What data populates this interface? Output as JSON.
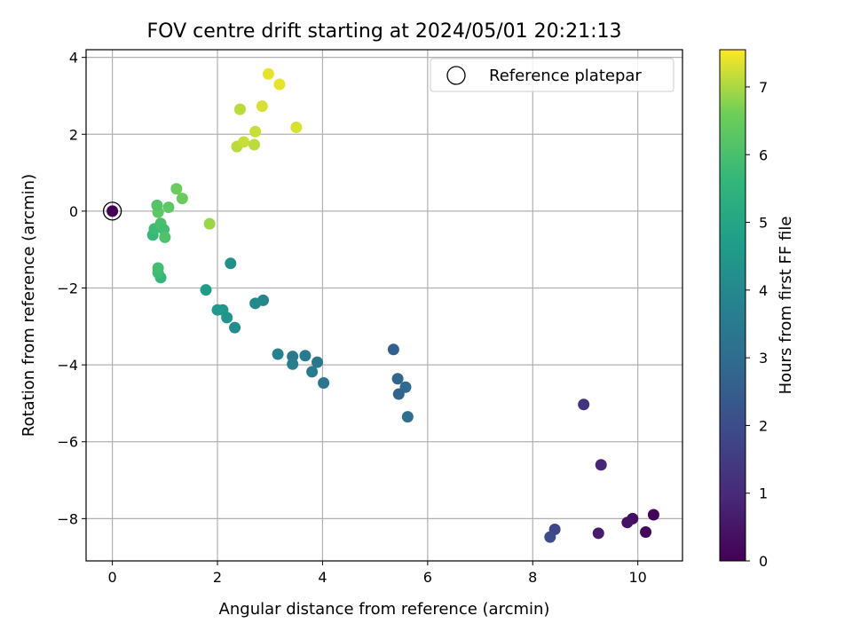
{
  "chart_data": {
    "type": "scatter",
    "title": "FOV centre drift starting at 2024/05/01 20:21:13",
    "xlabel": "Angular distance from reference (arcmin)",
    "ylabel": "Rotation from reference (arcmin)",
    "xlim": [
      -0.5,
      10.85
    ],
    "ylim": [
      -9.1,
      4.2
    ],
    "xticks": [
      0,
      2,
      4,
      6,
      8,
      10
    ],
    "yticks": [
      -8,
      -6,
      -4,
      -2,
      0,
      2,
      4
    ],
    "xtick_labels": [
      "0",
      "2",
      "4",
      "6",
      "8",
      "10"
    ],
    "ytick_labels": [
      "−8",
      "−6",
      "−4",
      "−2",
      "0",
      "2",
      "4"
    ],
    "grid": true,
    "legend": {
      "placement": "top-right",
      "entries": [
        {
          "label": "Reference platepar",
          "marker": "open-circle",
          "x": 0,
          "y": 0
        }
      ]
    },
    "colorbar": {
      "label": "Hours from first FF file",
      "colormap": "viridis",
      "range": [
        0,
        7.55
      ],
      "ticks": [
        0,
        1,
        2,
        3,
        4,
        5,
        6,
        7
      ],
      "tick_labels": [
        "0",
        "1",
        "2",
        "3",
        "4",
        "5",
        "6",
        "7"
      ]
    },
    "series": [
      {
        "points": [
          {
            "x": 0.0,
            "y": 0.0,
            "hours": 0.0
          },
          {
            "x": 10.3,
            "y": -7.9,
            "hours": 0.1
          },
          {
            "x": 10.15,
            "y": -8.35,
            "hours": 0.2
          },
          {
            "x": 9.9,
            "y": -8.0,
            "hours": 0.3
          },
          {
            "x": 9.8,
            "y": -8.1,
            "hours": 0.4
          },
          {
            "x": 9.25,
            "y": -8.38,
            "hours": 0.6
          },
          {
            "x": 9.3,
            "y": -6.6,
            "hours": 0.9
          },
          {
            "x": 8.97,
            "y": -5.03,
            "hours": 1.3
          },
          {
            "x": 8.42,
            "y": -8.28,
            "hours": 1.8
          },
          {
            "x": 8.33,
            "y": -8.48,
            "hours": 2.0
          },
          {
            "x": 5.62,
            "y": -5.35,
            "hours": 3.1
          },
          {
            "x": 5.58,
            "y": -4.58,
            "hours": 2.9
          },
          {
            "x": 5.45,
            "y": -4.76,
            "hours": 2.7
          },
          {
            "x": 5.43,
            "y": -4.36,
            "hours": 2.8
          },
          {
            "x": 5.35,
            "y": -3.6,
            "hours": 2.6
          },
          {
            "x": 4.02,
            "y": -4.47,
            "hours": 3.3
          },
          {
            "x": 3.9,
            "y": -3.93,
            "hours": 3.4
          },
          {
            "x": 3.8,
            "y": -4.18,
            "hours": 3.5
          },
          {
            "x": 3.67,
            "y": -3.76,
            "hours": 3.5
          },
          {
            "x": 3.43,
            "y": -3.78,
            "hours": 3.4
          },
          {
            "x": 3.43,
            "y": -3.98,
            "hours": 3.6
          },
          {
            "x": 3.15,
            "y": -3.72,
            "hours": 3.7
          },
          {
            "x": 2.87,
            "y": -2.32,
            "hours": 3.9
          },
          {
            "x": 2.72,
            "y": -2.4,
            "hours": 4.0
          },
          {
            "x": 2.33,
            "y": -3.03,
            "hours": 4.1
          },
          {
            "x": 2.25,
            "y": -1.36,
            "hours": 4.2
          },
          {
            "x": 2.18,
            "y": -2.77,
            "hours": 4.4
          },
          {
            "x": 2.1,
            "y": -2.57,
            "hours": 4.5
          },
          {
            "x": 2.0,
            "y": -2.57,
            "hours": 4.6
          },
          {
            "x": 1.78,
            "y": -2.05,
            "hours": 4.7
          },
          {
            "x": 0.92,
            "y": -1.73,
            "hours": 5.6
          },
          {
            "x": 0.87,
            "y": -1.6,
            "hours": 5.8
          },
          {
            "x": 0.87,
            "y": -1.48,
            "hours": 5.9
          },
          {
            "x": 0.77,
            "y": -0.62,
            "hours": 5.7
          },
          {
            "x": 0.8,
            "y": -0.46,
            "hours": 5.8
          },
          {
            "x": 0.92,
            "y": -0.32,
            "hours": 6.0
          },
          {
            "x": 0.98,
            "y": -0.48,
            "hours": 5.9
          },
          {
            "x": 1.0,
            "y": -0.68,
            "hours": 6.1
          },
          {
            "x": 0.87,
            "y": -0.03,
            "hours": 6.3
          },
          {
            "x": 0.85,
            "y": 0.15,
            "hours": 6.2
          },
          {
            "x": 1.07,
            "y": 0.1,
            "hours": 6.3
          },
          {
            "x": 1.22,
            "y": 0.58,
            "hours": 6.5
          },
          {
            "x": 1.33,
            "y": 0.33,
            "hours": 6.5
          },
          {
            "x": 1.85,
            "y": -0.33,
            "hours": 6.9
          },
          {
            "x": 2.37,
            "y": 1.68,
            "hours": 7.1
          },
          {
            "x": 2.5,
            "y": 1.8,
            "hours": 7.2
          },
          {
            "x": 2.7,
            "y": 1.73,
            "hours": 7.1
          },
          {
            "x": 2.72,
            "y": 2.07,
            "hours": 7.2
          },
          {
            "x": 2.43,
            "y": 2.65,
            "hours": 7.1
          },
          {
            "x": 2.85,
            "y": 2.73,
            "hours": 7.3
          },
          {
            "x": 3.5,
            "y": 2.18,
            "hours": 7.3
          },
          {
            "x": 2.97,
            "y": 3.57,
            "hours": 7.4
          },
          {
            "x": 3.18,
            "y": 3.3,
            "hours": 7.4
          }
        ]
      }
    ]
  }
}
